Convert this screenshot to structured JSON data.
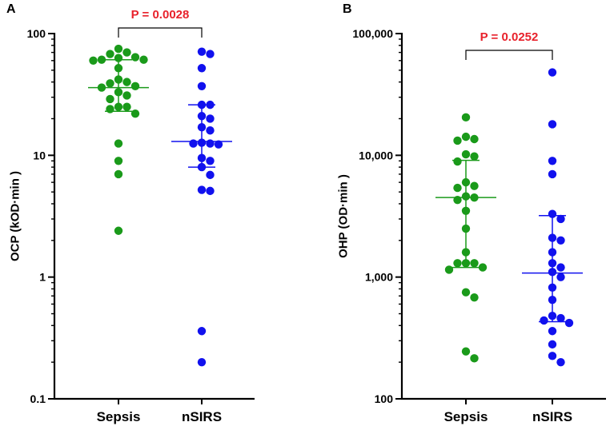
{
  "colors": {
    "sepsis": "#1a9a1a",
    "nsirs": "#1111ee",
    "pvalue": "#e8212b",
    "axis": "#000000"
  },
  "chart_data": [
    {
      "type": "scatter",
      "panel": "A",
      "ylabel": "OCP (kOD·min )",
      "yscale": "log",
      "ylim": [
        0.1,
        100
      ],
      "yticks": [
        0.1,
        1,
        10,
        100
      ],
      "ytick_labels": [
        "0.1",
        "1",
        "10",
        "100"
      ],
      "categories": [
        "Sepsis",
        "nSIRS"
      ],
      "pvalue_label": "P = 0.0028",
      "series": [
        {
          "name": "Sepsis",
          "median": 36,
          "q1": 23,
          "q3": 61,
          "points": [
            75,
            70,
            68,
            64,
            63,
            61,
            61,
            60,
            52,
            42,
            40,
            39,
            37,
            36,
            33,
            31,
            29,
            25,
            25,
            24,
            22,
            12.5,
            9,
            7,
            2.4
          ]
        },
        {
          "name": "nSIRS",
          "median": 13,
          "q1": 8,
          "q3": 26,
          "points": [
            71,
            68,
            52,
            37,
            26,
            26,
            21,
            20,
            17,
            16,
            12.7,
            12.5,
            12.5,
            12.3,
            9.5,
            9,
            8,
            6.9,
            5.1,
            5.2,
            0.36,
            0.2
          ]
        }
      ]
    },
    {
      "type": "scatter",
      "panel": "B",
      "ylabel": "OHP (OD·min )",
      "yscale": "log",
      "ylim": [
        100,
        100000
      ],
      "yticks": [
        100,
        1000,
        10000,
        100000
      ],
      "ytick_labels": [
        "100",
        "1,000",
        "10,000",
        "100,000"
      ],
      "categories": [
        "Sepsis",
        "nSIRS"
      ],
      "pvalue_label": "P = 0.0252",
      "series": [
        {
          "name": "Sepsis",
          "median": 4500,
          "q1": 1200,
          "q3": 9100,
          "points": [
            20500,
            14200,
            13600,
            13200,
            10200,
            9800,
            8900,
            6000,
            5600,
            5400,
            4600,
            4500,
            4300,
            3500,
            2500,
            1600,
            1300,
            1300,
            1300,
            1200,
            1150,
            750,
            680,
            245,
            215
          ]
        },
        {
          "name": "nSIRS",
          "median": 1080,
          "q1": 430,
          "q3": 3200,
          "points": [
            48000,
            18000,
            9000,
            7000,
            3300,
            3000,
            2100,
            2000,
            1600,
            1300,
            1200,
            1100,
            1000,
            820,
            650,
            480,
            460,
            440,
            420,
            360,
            280,
            225,
            200
          ]
        }
      ]
    }
  ]
}
